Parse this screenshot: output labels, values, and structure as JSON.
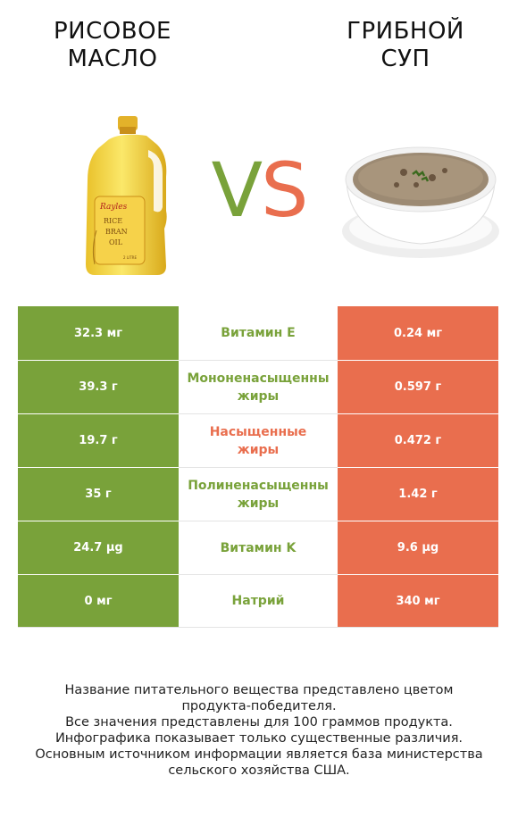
{
  "left_product": {
    "title": "РИСОВОЕ\nМАСЛО",
    "label_brand": "Rayles",
    "label_text": [
      "RICE",
      "BRAN",
      "OIL"
    ],
    "label_small": "2 LITRE"
  },
  "right_product": {
    "title": "ГРИБНОЙ\nСУП"
  },
  "vs": {
    "v": "V",
    "s": "S"
  },
  "colors": {
    "left": "#79a23a",
    "right": "#e96e4e"
  },
  "rows": [
    {
      "left": "32.3 мг",
      "name_lines": [
        "Витамин E"
      ],
      "right": "0.24 мг",
      "winner": "left"
    },
    {
      "left": "39.3 г",
      "name_lines": [
        "Мононенасыщенны",
        "жиры"
      ],
      "right": "0.597 г",
      "winner": "left"
    },
    {
      "left": "19.7 г",
      "name_lines": [
        "Насыщенные",
        "жиры"
      ],
      "right": "0.472 г",
      "winner": "right"
    },
    {
      "left": "35 г",
      "name_lines": [
        "Полиненасыщенны",
        "жиры"
      ],
      "right": "1.42 г",
      "winner": "left"
    },
    {
      "left": "24.7 µg",
      "name_lines": [
        "Витамин K"
      ],
      "right": "9.6 µg",
      "winner": "left"
    },
    {
      "left": "0 мг",
      "name_lines": [
        "Натрий"
      ],
      "right": "340 мг",
      "winner": "left"
    }
  ],
  "footer": {
    "lines": [
      "Название питательного вещества представлено цветом",
      "продукта-победителя.",
      "Все значения представлены для 100 граммов продукта.",
      "Инфографика показывает только существенные различия.",
      "Основным источником информации является база министерства",
      "сельского хозяйства США."
    ]
  }
}
